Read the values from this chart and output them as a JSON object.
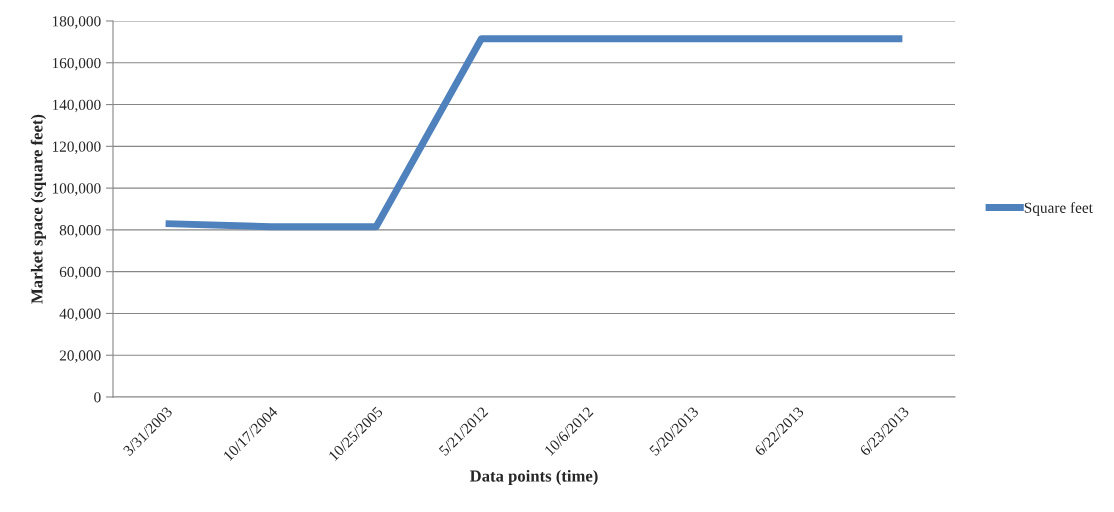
{
  "chart_data": {
    "type": "line",
    "xlabel": "Data points (time)",
    "ylabel": "Market space (square feet)",
    "categories": [
      "3/31/2003",
      "10/17/2004",
      "10/25/2005",
      "5/21/2012",
      "10/6/2012",
      "5/20/2013",
      "6/22/2013",
      "6/23/2013"
    ],
    "series": [
      {
        "name": "Square feet",
        "color": "#4f81bd",
        "values": [
          83000,
          81500,
          81500,
          171500,
          171500,
          171500,
          171500,
          171500
        ]
      }
    ],
    "ylim": [
      0,
      180000
    ],
    "yticks": [
      {
        "value": 0,
        "label": "0"
      },
      {
        "value": 20000,
        "label": "20,000"
      },
      {
        "value": 40000,
        "label": "40,000"
      },
      {
        "value": 60000,
        "label": "60,000"
      },
      {
        "value": 80000,
        "label": "80,000"
      },
      {
        "value": 100000,
        "label": "100,000"
      },
      {
        "value": 120000,
        "label": "120,000"
      },
      {
        "value": 140000,
        "label": "140,000"
      },
      {
        "value": 160000,
        "label": "160,000"
      },
      {
        "value": 180000,
        "label": "180,000"
      }
    ],
    "grid": "y",
    "legend": "right",
    "marker": "none",
    "line_style": "solid"
  }
}
